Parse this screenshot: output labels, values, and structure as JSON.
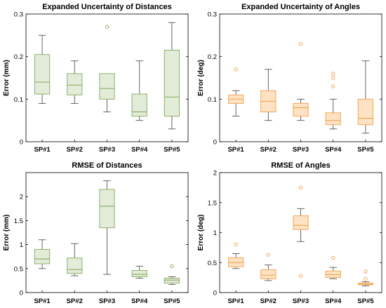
{
  "chart_data": [
    {
      "type": "box",
      "title": "Expanded Uncertainty of Distances",
      "ylabel": "Error (mm)",
      "ylim": [
        0,
        0.3
      ],
      "yticks": [
        "0",
        "0.1",
        "0.2",
        "0.3"
      ],
      "categories": [
        "SP#1",
        "SP#2",
        "SP#3",
        "SP#4",
        "SP#5"
      ],
      "colors": {
        "fill": "#e2ecd8",
        "stroke": "#8fb06a"
      },
      "boxes": [
        {
          "min": 0.09,
          "q1": 0.112,
          "median": 0.14,
          "q3": 0.205,
          "max": 0.25,
          "outliers": []
        },
        {
          "min": 0.09,
          "q1": 0.11,
          "median": 0.133,
          "q3": 0.16,
          "max": 0.19,
          "outliers": []
        },
        {
          "min": 0.07,
          "q1": 0.1,
          "median": 0.125,
          "q3": 0.16,
          "max": 0.16,
          "outliers": [
            0.27
          ]
        },
        {
          "min": 0.05,
          "q1": 0.06,
          "median": 0.07,
          "q3": 0.112,
          "max": 0.19,
          "outliers": []
        },
        {
          "min": 0.03,
          "q1": 0.06,
          "median": 0.105,
          "q3": 0.215,
          "max": 0.28,
          "outliers": []
        }
      ]
    },
    {
      "type": "box",
      "title": "Expanded Uncertainty of Angles",
      "ylabel": "Error (deg)",
      "ylim": [
        0,
        0.3
      ],
      "yticks": [
        "0",
        "0.1",
        "0.2",
        "0.3"
      ],
      "categories": [
        "SP#1",
        "SP#2",
        "SP#3",
        "SP#4",
        "SP#5"
      ],
      "colors": {
        "fill": "#fde3c4",
        "stroke": "#f0a85a"
      },
      "boxes": [
        {
          "min": 0.06,
          "q1": 0.09,
          "median": 0.1,
          "q3": 0.11,
          "max": 0.12,
          "outliers": [
            0.17
          ]
        },
        {
          "min": 0.05,
          "q1": 0.07,
          "median": 0.095,
          "q3": 0.12,
          "max": 0.17,
          "outliers": []
        },
        {
          "min": 0.05,
          "q1": 0.06,
          "median": 0.08,
          "q3": 0.09,
          "max": 0.1,
          "outliers": [
            0.23
          ]
        },
        {
          "min": 0.03,
          "q1": 0.04,
          "median": 0.05,
          "q3": 0.068,
          "max": 0.1,
          "outliers": [
            0.13,
            0.15,
            0.16
          ]
        },
        {
          "min": 0.02,
          "q1": 0.04,
          "median": 0.055,
          "q3": 0.1,
          "max": 0.19,
          "outliers": []
        }
      ]
    },
    {
      "type": "box",
      "title": "RMSE of Distances",
      "ylabel": "Error (mm)",
      "ylim": [
        0,
        2.5
      ],
      "yticks": [
        "0",
        "0.5",
        "1",
        "1.5",
        "2"
      ],
      "categories": [
        "SP#1",
        "SP#2",
        "SP#3",
        "SP#4",
        "SP#5"
      ],
      "colors": {
        "fill": "#e2ecd8",
        "stroke": "#8fb06a"
      },
      "boxes": [
        {
          "min": 0.5,
          "q1": 0.6,
          "median": 0.7,
          "q3": 0.9,
          "max": 1.1,
          "outliers": []
        },
        {
          "min": 0.35,
          "q1": 0.4,
          "median": 0.48,
          "q3": 0.72,
          "max": 1.02,
          "outliers": []
        },
        {
          "min": 0.38,
          "q1": 1.35,
          "median": 1.8,
          "q3": 2.15,
          "max": 2.33,
          "outliers": []
        },
        {
          "min": 0.3,
          "q1": 0.33,
          "median": 0.38,
          "q3": 0.46,
          "max": 0.55,
          "outliers": []
        },
        {
          "min": 0.17,
          "q1": 0.2,
          "median": 0.26,
          "q3": 0.3,
          "max": 0.33,
          "outliers": [
            0.55
          ]
        }
      ]
    },
    {
      "type": "box",
      "title": "RMSE of Angles",
      "ylabel": "Error (deg)",
      "ylim": [
        0,
        2
      ],
      "yticks": [
        "0",
        "0.5",
        "1",
        "1.5",
        "2"
      ],
      "categories": [
        "SP#1",
        "SP#2",
        "SP#3",
        "SP#4",
        "SP#5"
      ],
      "colors": {
        "fill": "#fde3c4",
        "stroke": "#f0a85a"
      },
      "boxes": [
        {
          "min": 0.4,
          "q1": 0.43,
          "median": 0.5,
          "q3": 0.58,
          "max": 0.65,
          "outliers": [
            0.8
          ]
        },
        {
          "min": 0.2,
          "q1": 0.23,
          "median": 0.29,
          "q3": 0.38,
          "max": 0.46,
          "outliers": [
            0.63
          ]
        },
        {
          "min": 0.85,
          "q1": 1.05,
          "median": 1.12,
          "q3": 1.28,
          "max": 1.4,
          "outliers": [
            0.28,
            1.75
          ]
        },
        {
          "min": 0.23,
          "q1": 0.25,
          "median": 0.3,
          "q3": 0.36,
          "max": 0.42,
          "outliers": [
            0.58
          ]
        },
        {
          "min": 0.11,
          "q1": 0.13,
          "median": 0.14,
          "q3": 0.16,
          "max": 0.18,
          "outliers": [
            0.23,
            0.35
          ]
        }
      ]
    }
  ]
}
